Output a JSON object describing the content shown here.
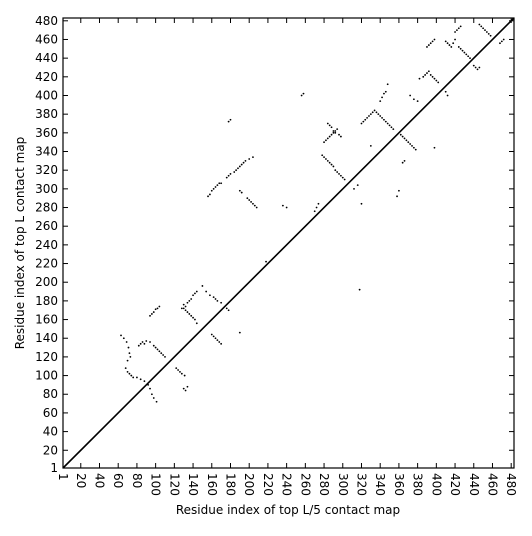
{
  "chart_data": {
    "type": "scatter",
    "title": "",
    "xlabel": "Residue index of top L/5 contact map",
    "ylabel": "Residue index of top L contact map",
    "xlim": [
      1,
      483
    ],
    "ylim": [
      1,
      483
    ],
    "x_ticks": [
      1,
      20,
      40,
      60,
      80,
      100,
      120,
      140,
      160,
      180,
      200,
      220,
      240,
      260,
      280,
      300,
      320,
      340,
      360,
      380,
      400,
      420,
      440,
      460,
      480
    ],
    "y_ticks": [
      1,
      20,
      40,
      60,
      80,
      100,
      120,
      140,
      160,
      180,
      200,
      220,
      240,
      260,
      280,
      300,
      320,
      340,
      360,
      380,
      400,
      420,
      440,
      460,
      480
    ],
    "x_tick_rotation_deg": -90,
    "grid": false,
    "diagonal_line": true,
    "marker": "dot",
    "color": "#000000",
    "series": [
      {
        "values": [
          [
            63,
            143
          ],
          [
            66,
            140
          ],
          [
            69,
            136
          ],
          [
            71,
            130
          ],
          [
            72,
            124
          ],
          [
            73,
            120
          ],
          [
            70,
            116
          ],
          [
            68,
            108
          ],
          [
            70,
            104
          ],
          [
            72,
            102
          ],
          [
            74,
            100
          ],
          [
            76,
            98
          ],
          [
            80,
            98
          ],
          [
            84,
            96
          ],
          [
            88,
            94
          ],
          [
            92,
            90
          ],
          [
            94,
            86
          ],
          [
            96,
            80
          ],
          [
            98,
            76
          ],
          [
            101,
            72
          ],
          [
            82,
            132
          ],
          [
            84,
            134
          ],
          [
            86,
            136
          ],
          [
            88,
            134
          ],
          [
            90,
            137
          ],
          [
            94,
            136
          ],
          [
            98,
            132
          ],
          [
            100,
            130
          ],
          [
            102,
            128
          ],
          [
            104,
            126
          ],
          [
            106,
            124
          ],
          [
            108,
            122
          ],
          [
            110,
            120
          ],
          [
            94,
            164
          ],
          [
            96,
            166
          ],
          [
            98,
            168
          ],
          [
            100,
            171
          ],
          [
            102,
            172
          ],
          [
            104,
            174
          ],
          [
            122,
            108
          ],
          [
            124,
            106
          ],
          [
            126,
            104
          ],
          [
            128,
            102
          ],
          [
            131,
            100
          ],
          [
            130,
            86
          ],
          [
            132,
            84
          ],
          [
            134,
            88
          ],
          [
            128,
            172
          ],
          [
            130,
            176
          ],
          [
            132,
            174
          ],
          [
            134,
            178
          ],
          [
            136,
            180
          ],
          [
            138,
            182
          ],
          [
            140,
            186
          ],
          [
            142,
            188
          ],
          [
            144,
            190
          ],
          [
            130,
            172
          ],
          [
            132,
            170
          ],
          [
            134,
            168
          ],
          [
            136,
            166
          ],
          [
            138,
            164
          ],
          [
            140,
            162
          ],
          [
            142,
            160
          ],
          [
            144,
            156
          ],
          [
            150,
            196
          ],
          [
            154,
            190
          ],
          [
            158,
            186
          ],
          [
            162,
            184
          ],
          [
            164,
            182
          ],
          [
            166,
            180
          ],
          [
            170,
            178
          ],
          [
            160,
            144
          ],
          [
            162,
            142
          ],
          [
            164,
            140
          ],
          [
            166,
            138
          ],
          [
            168,
            136
          ],
          [
            170,
            134
          ],
          [
            176,
            172
          ],
          [
            178,
            170
          ],
          [
            190,
            146
          ],
          [
            156,
            292
          ],
          [
            158,
            294
          ],
          [
            160,
            298
          ],
          [
            162,
            300
          ],
          [
            164,
            302
          ],
          [
            166,
            304
          ],
          [
            168,
            306
          ],
          [
            170,
            306
          ],
          [
            176,
            312
          ],
          [
            178,
            314
          ],
          [
            180,
            316
          ],
          [
            184,
            318
          ],
          [
            186,
            320
          ],
          [
            188,
            322
          ],
          [
            190,
            324
          ],
          [
            192,
            326
          ],
          [
            194,
            328
          ],
          [
            196,
            330
          ],
          [
            200,
            332
          ],
          [
            204,
            334
          ],
          [
            178,
            372
          ],
          [
            180,
            374
          ],
          [
            190,
            298
          ],
          [
            192,
            296
          ],
          [
            198,
            290
          ],
          [
            200,
            288
          ],
          [
            202,
            286
          ],
          [
            204,
            284
          ],
          [
            206,
            282
          ],
          [
            208,
            280
          ],
          [
            218,
            222
          ],
          [
            236,
            282
          ],
          [
            240,
            280
          ],
          [
            256,
            400
          ],
          [
            258,
            402
          ],
          [
            270,
            276
          ],
          [
            272,
            280
          ],
          [
            274,
            284
          ],
          [
            278,
            336
          ],
          [
            280,
            334
          ],
          [
            282,
            332
          ],
          [
            284,
            330
          ],
          [
            286,
            328
          ],
          [
            288,
            326
          ],
          [
            290,
            324
          ],
          [
            292,
            320
          ],
          [
            294,
            318
          ],
          [
            296,
            316
          ],
          [
            298,
            314
          ],
          [
            300,
            312
          ],
          [
            302,
            310
          ],
          [
            280,
            350
          ],
          [
            282,
            352
          ],
          [
            284,
            354
          ],
          [
            286,
            356
          ],
          [
            288,
            358
          ],
          [
            290,
            360
          ],
          [
            292,
            362
          ],
          [
            294,
            364
          ],
          [
            284,
            370
          ],
          [
            286,
            368
          ],
          [
            288,
            366
          ],
          [
            290,
            362
          ],
          [
            292,
            360
          ],
          [
            296,
            358
          ],
          [
            298,
            356
          ],
          [
            312,
            300
          ],
          [
            316,
            304
          ],
          [
            318,
            192
          ],
          [
            320,
            284
          ],
          [
            320,
            370
          ],
          [
            322,
            372
          ],
          [
            324,
            374
          ],
          [
            326,
            376
          ],
          [
            328,
            378
          ],
          [
            330,
            380
          ],
          [
            332,
            382
          ],
          [
            334,
            384
          ],
          [
            336,
            382
          ],
          [
            338,
            380
          ],
          [
            340,
            378
          ],
          [
            342,
            376
          ],
          [
            344,
            374
          ],
          [
            346,
            372
          ],
          [
            348,
            370
          ],
          [
            350,
            368
          ],
          [
            352,
            366
          ],
          [
            354,
            364
          ],
          [
            330,
            346
          ],
          [
            340,
            394
          ],
          [
            342,
            398
          ],
          [
            344,
            402
          ],
          [
            346,
            404
          ],
          [
            348,
            412
          ],
          [
            358,
            292
          ],
          [
            360,
            298
          ],
          [
            364,
            328
          ],
          [
            366,
            330
          ],
          [
            362,
            358
          ],
          [
            364,
            356
          ],
          [
            366,
            354
          ],
          [
            368,
            352
          ],
          [
            370,
            350
          ],
          [
            372,
            348
          ],
          [
            374,
            346
          ],
          [
            376,
            344
          ],
          [
            378,
            342
          ],
          [
            372,
            400
          ],
          [
            376,
            396
          ],
          [
            380,
            394
          ],
          [
            382,
            418
          ],
          [
            386,
            420
          ],
          [
            388,
            422
          ],
          [
            390,
            424
          ],
          [
            392,
            426
          ],
          [
            394,
            422
          ],
          [
            396,
            420
          ],
          [
            398,
            418
          ],
          [
            400,
            416
          ],
          [
            402,
            414
          ],
          [
            390,
            452
          ],
          [
            392,
            454
          ],
          [
            394,
            456
          ],
          [
            396,
            458
          ],
          [
            398,
            460
          ],
          [
            398,
            344
          ],
          [
            410,
            404
          ],
          [
            412,
            400
          ],
          [
            410,
            458
          ],
          [
            412,
            456
          ],
          [
            414,
            454
          ],
          [
            416,
            452
          ],
          [
            418,
            456
          ],
          [
            420,
            460
          ],
          [
            420,
            468
          ],
          [
            422,
            470
          ],
          [
            424,
            472
          ],
          [
            426,
            474
          ],
          [
            424,
            452
          ],
          [
            426,
            450
          ],
          [
            428,
            448
          ],
          [
            430,
            446
          ],
          [
            432,
            444
          ],
          [
            434,
            442
          ],
          [
            436,
            440
          ],
          [
            440,
            432
          ],
          [
            442,
            430
          ],
          [
            444,
            428
          ],
          [
            446,
            430
          ],
          [
            446,
            476
          ],
          [
            448,
            474
          ],
          [
            450,
            472
          ],
          [
            452,
            470
          ],
          [
            454,
            468
          ],
          [
            456,
            466
          ],
          [
            458,
            464
          ],
          [
            468,
            456
          ],
          [
            470,
            458
          ],
          [
            472,
            460
          ]
        ]
      }
    ]
  }
}
